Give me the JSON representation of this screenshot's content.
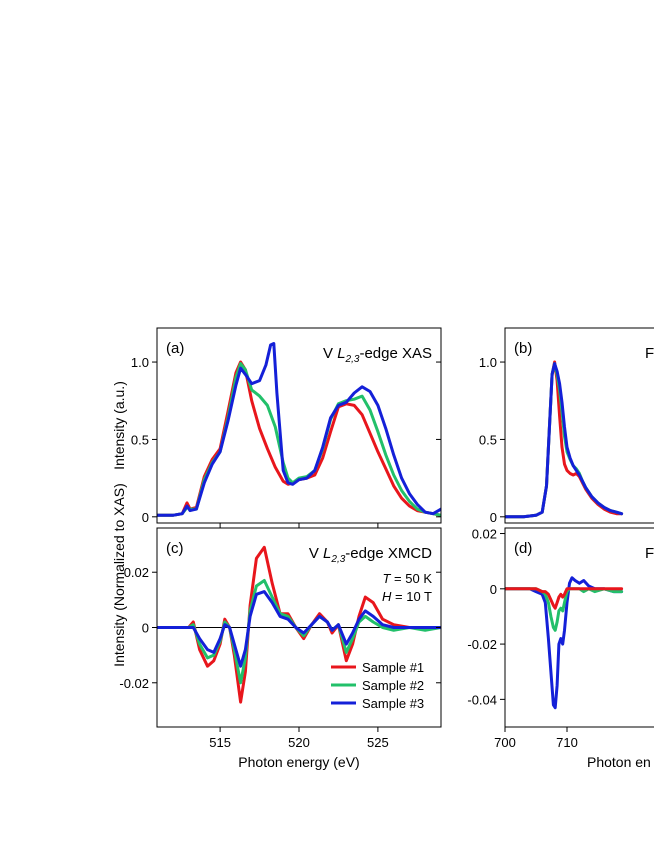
{
  "colors": {
    "sample1": "#e8161c",
    "sample2": "#22c06a",
    "sample3": "#1420d8"
  },
  "chart_data": [
    {
      "type": "line",
      "panel": "(a)",
      "title_prefix": "V ",
      "title_italic": "L",
      "title_sub": "2,3",
      "title_suffix": "-edge XAS",
      "ylabel": "Intensity (a.u.)",
      "xlim": [
        511,
        529
      ],
      "ylim": [
        -0.04,
        1.22
      ],
      "xticks": [
        515,
        520,
        525
      ],
      "yticks": [
        0,
        0.5,
        1.0
      ],
      "ytick_labels": [
        "0",
        "0.5",
        "1.0"
      ],
      "series": [
        {
          "key": "sample1",
          "x": [
            511,
            512,
            512.6,
            512.9,
            513.1,
            513.5,
            514,
            514.5,
            515,
            515.5,
            516,
            516.3,
            516.6,
            517,
            517.5,
            518,
            518.5,
            519,
            519.3,
            519.6,
            520,
            520.5,
            521,
            521.5,
            522,
            522.5,
            523,
            523.5,
            524,
            524.5,
            525,
            525.5,
            526,
            526.5,
            527,
            527.5,
            528,
            528.5,
            529
          ],
          "y": [
            0.01,
            0.01,
            0.02,
            0.09,
            0.05,
            0.06,
            0.26,
            0.37,
            0.44,
            0.68,
            0.93,
            1.0,
            0.95,
            0.75,
            0.57,
            0.44,
            0.32,
            0.23,
            0.21,
            0.22,
            0.24,
            0.25,
            0.27,
            0.38,
            0.55,
            0.71,
            0.73,
            0.72,
            0.66,
            0.54,
            0.42,
            0.31,
            0.2,
            0.12,
            0.07,
            0.04,
            0.03,
            0.02,
            0.01
          ]
        },
        {
          "key": "sample2",
          "x": [
            511,
            512,
            512.6,
            512.9,
            513.1,
            513.5,
            514,
            514.5,
            515,
            515.5,
            516,
            516.3,
            516.6,
            517,
            517.5,
            518,
            518.5,
            519,
            519.3,
            519.6,
            520,
            520.5,
            521,
            521.5,
            522,
            522.5,
            523,
            523.5,
            524,
            524.5,
            525,
            525.5,
            526,
            526.5,
            527,
            527.5,
            528,
            528.5,
            529
          ],
          "y": [
            0.01,
            0.01,
            0.02,
            0.06,
            0.05,
            0.05,
            0.24,
            0.35,
            0.42,
            0.64,
            0.9,
            0.99,
            0.95,
            0.82,
            0.78,
            0.72,
            0.58,
            0.35,
            0.25,
            0.22,
            0.25,
            0.26,
            0.3,
            0.44,
            0.63,
            0.73,
            0.75,
            0.76,
            0.78,
            0.69,
            0.55,
            0.4,
            0.27,
            0.17,
            0.1,
            0.05,
            0.03,
            0.02,
            0.01
          ]
        },
        {
          "key": "sample3",
          "x": [
            511,
            512,
            512.6,
            512.9,
            513.1,
            513.5,
            514,
            514.5,
            515,
            515.5,
            516,
            516.3,
            516.6,
            517,
            517.5,
            517.9,
            518.2,
            518.4,
            518.6,
            519,
            519.3,
            519.6,
            520,
            520.5,
            521,
            521.5,
            522,
            522.5,
            523,
            523.5,
            524,
            524.5,
            525,
            525.5,
            526,
            526.5,
            527,
            527.5,
            528,
            528.5,
            529
          ],
          "y": [
            0.01,
            0.01,
            0.02,
            0.07,
            0.04,
            0.05,
            0.22,
            0.34,
            0.42,
            0.62,
            0.85,
            0.96,
            0.92,
            0.86,
            0.88,
            0.98,
            1.11,
            1.12,
            0.8,
            0.3,
            0.22,
            0.21,
            0.24,
            0.25,
            0.3,
            0.45,
            0.64,
            0.72,
            0.74,
            0.8,
            0.84,
            0.81,
            0.72,
            0.57,
            0.4,
            0.25,
            0.15,
            0.08,
            0.03,
            0.02,
            0.05
          ]
        }
      ]
    },
    {
      "type": "line",
      "panel": "(b)",
      "title_prefix": "F",
      "xlim": [
        700,
        725
      ],
      "ylim": [
        -0.04,
        1.22
      ],
      "yticks": [
        0,
        0.5,
        1.0
      ],
      "ytick_labels": [
        "0",
        "0.5",
        "1.0"
      ],
      "series": [
        {
          "key": "sample1",
          "x": [
            700,
            703,
            705,
            706,
            706.7,
            707.2,
            707.6,
            708,
            708.4,
            708.8,
            709.2,
            709.6,
            710,
            710.5,
            711,
            711.5,
            712,
            712.5,
            713,
            714,
            715,
            716,
            717,
            718,
            718.8
          ],
          "y": [
            0,
            0,
            0.01,
            0.03,
            0.2,
            0.6,
            0.92,
            1.0,
            0.88,
            0.65,
            0.45,
            0.34,
            0.3,
            0.28,
            0.27,
            0.28,
            0.26,
            0.22,
            0.18,
            0.12,
            0.08,
            0.05,
            0.03,
            0.02,
            0.02
          ]
        },
        {
          "key": "sample2",
          "x": [
            700,
            703,
            705,
            706,
            706.7,
            707.2,
            707.6,
            708,
            708.4,
            708.8,
            709.2,
            709.6,
            710,
            710.5,
            711,
            711.5,
            712,
            712.5,
            713,
            714,
            715,
            716,
            717,
            718,
            718.8
          ],
          "y": [
            0,
            0,
            0.01,
            0.03,
            0.2,
            0.6,
            0.92,
            0.99,
            0.92,
            0.82,
            0.68,
            0.52,
            0.42,
            0.37,
            0.33,
            0.31,
            0.28,
            0.23,
            0.19,
            0.13,
            0.09,
            0.06,
            0.04,
            0.03,
            0.02
          ]
        },
        {
          "key": "sample3",
          "x": [
            700,
            703,
            705,
            706,
            706.7,
            707.2,
            707.6,
            708,
            708.4,
            708.8,
            709.2,
            709.6,
            710,
            710.5,
            711,
            711.5,
            712,
            712.5,
            713,
            714,
            715,
            716,
            717,
            718,
            718.8
          ],
          "y": [
            0,
            0,
            0.01,
            0.03,
            0.2,
            0.6,
            0.92,
            0.99,
            0.94,
            0.86,
            0.74,
            0.58,
            0.45,
            0.38,
            0.33,
            0.3,
            0.27,
            0.23,
            0.19,
            0.13,
            0.09,
            0.06,
            0.04,
            0.03,
            0.02
          ]
        }
      ]
    },
    {
      "type": "line",
      "panel": "(c)",
      "title_prefix": "V ",
      "title_italic": "L",
      "title_sub": "2,3",
      "title_suffix": "-edge XMCD",
      "ylabel": "Intensity (Normalized to XAS)",
      "xlabel": "Photon energy (eV)",
      "xlim": [
        511,
        529
      ],
      "ylim": [
        -0.036,
        0.036
      ],
      "xticks": [
        515,
        520,
        525
      ],
      "yticks": [
        -0.02,
        0,
        0.02
      ],
      "ytick_labels": [
        "-0.02",
        "0",
        "0.02"
      ],
      "conditions": [
        {
          "italic": "T",
          "rest": " = 50 K"
        },
        {
          "italic": "H",
          "rest": " = 10 T"
        }
      ],
      "legend": {
        "placement": "bottom-right",
        "entries": [
          {
            "key": "sample1",
            "label": "Sample #1"
          },
          {
            "key": "sample2",
            "label": "Sample #2"
          },
          {
            "key": "sample3",
            "label": "Sample #3"
          }
        ]
      },
      "series": [
        {
          "key": "sample1",
          "x": [
            511,
            512,
            513,
            513.3,
            513.7,
            514.2,
            514.6,
            515,
            515.3,
            515.6,
            515.9,
            516.3,
            516.6,
            516.9,
            517.3,
            517.8,
            518.3,
            518.8,
            519.3,
            519.8,
            520.3,
            520.8,
            521.3,
            521.8,
            522.1,
            522.5,
            523,
            523.4,
            523.8,
            524.2,
            524.7,
            525.3,
            526,
            527,
            528,
            529
          ],
          "y": [
            0,
            0,
            0,
            0.002,
            -0.008,
            -0.014,
            -0.012,
            -0.006,
            0.003,
            0,
            -0.01,
            -0.027,
            -0.016,
            0.008,
            0.025,
            0.029,
            0.016,
            0.005,
            0.005,
            0,
            -0.004,
            0.001,
            0.005,
            0.002,
            -0.002,
            0.001,
            -0.012,
            -0.006,
            0.004,
            0.011,
            0.009,
            0.003,
            0.001,
            0,
            0,
            0
          ]
        },
        {
          "key": "sample2",
          "x": [
            511,
            512,
            513,
            513.3,
            513.7,
            514.2,
            514.6,
            515,
            515.3,
            515.6,
            515.9,
            516.3,
            516.6,
            516.9,
            517.3,
            517.8,
            518.3,
            518.8,
            519.3,
            519.8,
            520.3,
            520.8,
            521.3,
            521.8,
            522.1,
            522.5,
            523,
            523.4,
            523.8,
            524.2,
            524.7,
            525.3,
            526,
            527,
            528,
            529
          ],
          "y": [
            0,
            0,
            0,
            0.001,
            -0.006,
            -0.011,
            -0.01,
            -0.005,
            0.002,
            0,
            -0.008,
            -0.02,
            -0.011,
            0.006,
            0.015,
            0.017,
            0.011,
            0.005,
            0.004,
            0,
            -0.003,
            0.001,
            0.004,
            0.002,
            -0.001,
            0.001,
            -0.009,
            -0.004,
            0.002,
            0.004,
            0.002,
            0,
            -0.001,
            0,
            -0.001,
            0
          ]
        },
        {
          "key": "sample3",
          "x": [
            511,
            512,
            513,
            513.3,
            513.7,
            514.2,
            514.6,
            515,
            515.3,
            515.6,
            515.9,
            516.3,
            516.6,
            516.9,
            517.3,
            517.8,
            518.3,
            518.8,
            519.3,
            519.8,
            520.3,
            520.8,
            521.3,
            521.8,
            522.1,
            522.5,
            523,
            523.4,
            523.8,
            524.2,
            524.7,
            525.3,
            526,
            527,
            528,
            529
          ],
          "y": [
            0,
            0,
            0,
            0,
            -0.004,
            -0.008,
            -0.009,
            -0.004,
            0.001,
            0,
            -0.006,
            -0.014,
            -0.008,
            0.004,
            0.012,
            0.013,
            0.009,
            0.004,
            0.003,
            0,
            -0.002,
            0.001,
            0.004,
            0.002,
            -0.001,
            0.001,
            -0.006,
            -0.002,
            0.003,
            0.006,
            0.004,
            0.001,
            0,
            0,
            0,
            0
          ]
        }
      ]
    },
    {
      "type": "line",
      "panel": "(d)",
      "title_prefix": "Fe",
      "xlabel": "Photon en",
      "xlim": [
        700,
        725
      ],
      "ylim": [
        -0.05,
        0.022
      ],
      "xticks": [
        700,
        710
      ],
      "yticks": [
        -0.04,
        -0.02,
        0,
        0.02
      ],
      "ytick_labels": [
        "-0.04",
        "-0.02",
        "0",
        "0.02"
      ],
      "series": [
        {
          "key": "sample3",
          "x": [
            700,
            702,
            704,
            705,
            706,
            706.5,
            707,
            707.4,
            707.8,
            708.1,
            708.4,
            708.7,
            709,
            709.3,
            709.6,
            710,
            710.4,
            710.8,
            711.3,
            712,
            712.7,
            713.5,
            714.5,
            716,
            717.5,
            718.8
          ],
          "y": [
            0,
            0,
            0,
            -0.001,
            -0.002,
            -0.005,
            -0.018,
            -0.03,
            -0.042,
            -0.043,
            -0.035,
            -0.02,
            -0.018,
            -0.02,
            -0.015,
            -0.005,
            0.002,
            0.004,
            0.003,
            0.002,
            0.003,
            0.001,
            0,
            0,
            -0.001,
            -0.001
          ]
        },
        {
          "key": "sample2",
          "x": [
            700,
            702,
            704,
            705,
            706,
            706.5,
            707,
            707.4,
            707.8,
            708.1,
            708.4,
            708.7,
            709,
            709.3,
            709.6,
            710,
            710.4,
            710.8,
            711.3,
            712,
            712.7,
            713.5,
            714.5,
            716,
            717.5,
            718.8
          ],
          "y": [
            0,
            0,
            0,
            0,
            -0.001,
            -0.002,
            -0.005,
            -0.01,
            -0.014,
            -0.015,
            -0.012,
            -0.008,
            -0.007,
            -0.008,
            -0.005,
            -0.001,
            0,
            0,
            0,
            0,
            -0.001,
            0,
            -0.001,
            0,
            -0.001,
            -0.001
          ]
        },
        {
          "key": "sample1",
          "x": [
            700,
            702,
            704,
            705,
            706,
            706.5,
            707,
            707.4,
            707.8,
            708.1,
            708.4,
            708.7,
            709,
            709.3,
            709.6,
            710,
            710.4,
            710.8,
            711.3,
            712,
            712.7,
            713.5,
            714.5,
            716,
            717.5,
            718.8
          ],
          "y": [
            0,
            0,
            0,
            0,
            -0.001,
            -0.001,
            -0.002,
            -0.004,
            -0.006,
            -0.007,
            -0.005,
            -0.003,
            -0.002,
            -0.003,
            -0.002,
            0,
            0,
            0,
            0,
            0,
            0,
            0,
            0,
            0,
            0,
            0
          ]
        }
      ]
    }
  ]
}
